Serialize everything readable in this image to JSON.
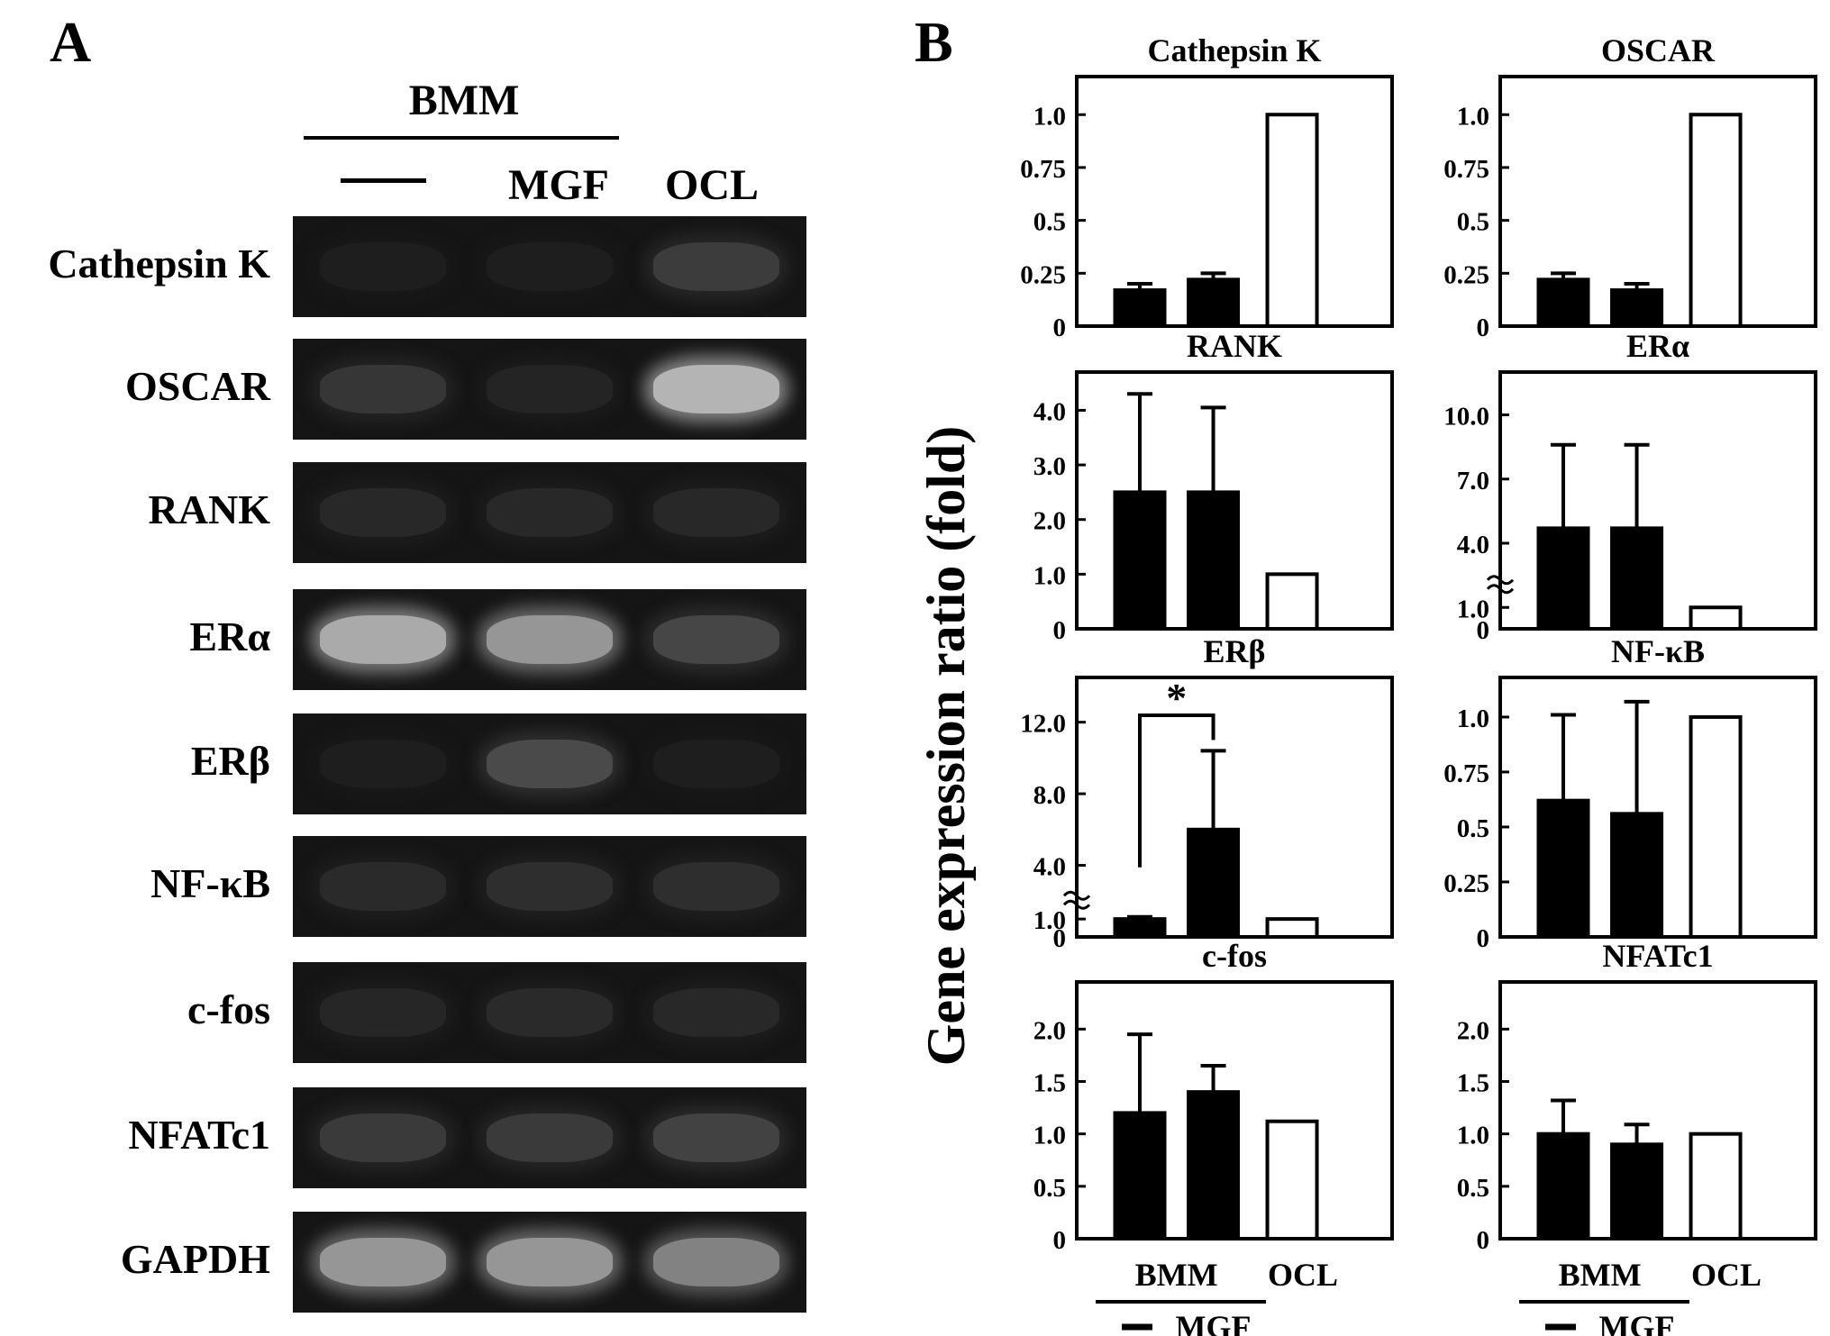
{
  "panel_a": {
    "letter": "A",
    "group_label": "BMM",
    "column_labels": [
      "",
      "MGF",
      "OCL"
    ],
    "rows": [
      {
        "label": "Cathepsin K",
        "intensity": [
          0.0,
          0.0,
          0.15
        ]
      },
      {
        "label": "OSCAR",
        "intensity": [
          0.12,
          0.03,
          0.75
        ]
      },
      {
        "label": "RANK",
        "intensity": [
          0.05,
          0.05,
          0.05
        ]
      },
      {
        "label": "ERα",
        "intensity": [
          0.7,
          0.6,
          0.2
        ]
      },
      {
        "label": "ERβ",
        "intensity": [
          0.0,
          0.22,
          0.0
        ]
      },
      {
        "label": "NF-κB",
        "intensity": [
          0.06,
          0.08,
          0.08
        ]
      },
      {
        "label": "c-fos",
        "intensity": [
          0.04,
          0.06,
          0.05
        ]
      },
      {
        "label": "NFATc1",
        "intensity": [
          0.14,
          0.14,
          0.18
        ]
      },
      {
        "label": "GAPDH",
        "intensity": [
          0.6,
          0.6,
          0.5
        ]
      }
    ]
  },
  "panel_b": {
    "letter": "B",
    "ylabel": "Gene expression ratio (fold)",
    "group_label": "BMM",
    "x_labels": [
      "",
      "MGF",
      "OCL"
    ]
  },
  "chart_data": [
    {
      "type": "bar",
      "title": "Cathepsin K",
      "categories": [
        "",
        "MGF",
        "OCL"
      ],
      "values": [
        0.17,
        0.22,
        1.0
      ],
      "errors": [
        0.03,
        0.03,
        0
      ],
      "yticks": [
        "0",
        "0.25",
        "0.5",
        "0.75",
        "1.0"
      ],
      "tick_values": [
        0,
        0.25,
        0.5,
        0.75,
        1.0
      ],
      "ylim": [
        0,
        1.18
      ]
    },
    {
      "type": "bar",
      "title": "OSCAR",
      "categories": [
        "",
        "MGF",
        "OCL"
      ],
      "values": [
        0.22,
        0.17,
        1.0
      ],
      "errors": [
        0.03,
        0.03,
        0
      ],
      "yticks": [
        "0",
        "0.25",
        "0.5",
        "0.75",
        "1.0"
      ],
      "tick_values": [
        0,
        0.25,
        0.5,
        0.75,
        1.0
      ],
      "ylim": [
        0,
        1.18
      ]
    },
    {
      "type": "bar",
      "title": "RANK",
      "categories": [
        "",
        "MGF",
        "OCL"
      ],
      "values": [
        2.5,
        2.5,
        1.0
      ],
      "errors": [
        1.8,
        1.55,
        0
      ],
      "yticks": [
        "0",
        "1.0",
        "2.0",
        "3.0",
        "4.0"
      ],
      "tick_values": [
        0,
        1,
        2,
        3,
        4
      ],
      "ylim": [
        0,
        4.7
      ]
    },
    {
      "type": "bar",
      "title": "ERα",
      "categories": [
        "",
        "MGF",
        "OCL"
      ],
      "values": [
        4.7,
        4.7,
        1.0
      ],
      "errors": [
        3.9,
        3.9,
        0
      ],
      "axis_break": true,
      "yticks": [
        "0",
        "1.0",
        "4.0",
        "7.0",
        "10.0"
      ],
      "tick_values": [
        0,
        1,
        4,
        7,
        10
      ],
      "ylim": [
        0,
        12
      ]
    },
    {
      "type": "bar",
      "title": "ERβ",
      "categories": [
        "",
        "MGF",
        "OCL"
      ],
      "values": [
        1.0,
        6.0,
        1.0
      ],
      "errors": [
        0.12,
        4.4,
        0
      ],
      "axis_break": true,
      "yticks": [
        "0",
        "1.0",
        "4.0",
        "8.0",
        "12.0"
      ],
      "tick_values": [
        0,
        1,
        4,
        8,
        12
      ],
      "ylim": [
        0,
        14.5
      ],
      "significance": {
        "from": 0,
        "to": 1,
        "label": "*"
      }
    },
    {
      "type": "bar",
      "title": "NF-κB",
      "categories": [
        "",
        "MGF",
        "OCL"
      ],
      "values": [
        0.62,
        0.56,
        1.0
      ],
      "errors": [
        0.39,
        0.51,
        0
      ],
      "yticks": [
        "0",
        "0.25",
        "0.5",
        "0.75",
        "1.0"
      ],
      "tick_values": [
        0,
        0.25,
        0.5,
        0.75,
        1.0
      ],
      "ylim": [
        0,
        1.18
      ]
    },
    {
      "type": "bar",
      "title": "c-fos",
      "categories": [
        "",
        "MGF",
        "OCL"
      ],
      "values": [
        1.2,
        1.4,
        1.12
      ],
      "errors": [
        0.75,
        0.25,
        0
      ],
      "yticks": [
        "0",
        "0.5",
        "1.0",
        "1.5",
        "2.0"
      ],
      "tick_values": [
        0,
        0.5,
        1.0,
        1.5,
        2.0
      ],
      "ylim": [
        0,
        2.45
      ]
    },
    {
      "type": "bar",
      "title": "NFATc1",
      "categories": [
        "",
        "MGF",
        "OCL"
      ],
      "values": [
        1.0,
        0.9,
        1.0
      ],
      "errors": [
        0.32,
        0.19,
        0
      ],
      "yticks": [
        "0",
        "0.5",
        "1.0",
        "1.5",
        "2.0"
      ],
      "tick_values": [
        0,
        0.5,
        1.0,
        1.5,
        2.0
      ],
      "ylim": [
        0,
        2.45
      ]
    }
  ]
}
